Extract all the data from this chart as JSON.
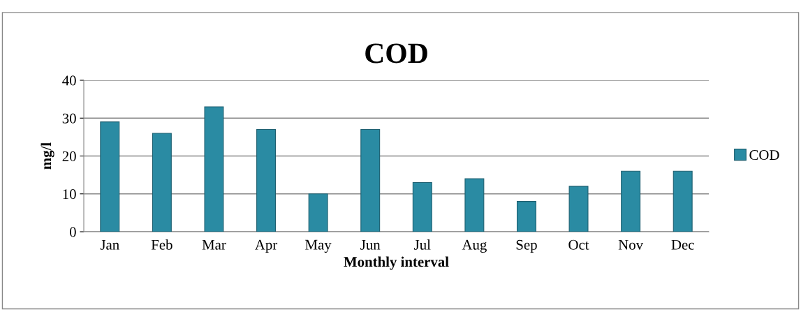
{
  "chart_data": {
    "type": "bar",
    "title": "COD",
    "xlabel": "Monthly interval",
    "ylabel": "mg/l",
    "categories": [
      "Jan",
      "Feb",
      "Mar",
      "Apr",
      "May",
      "Jun",
      "Jul",
      "Aug",
      "Sep",
      "Oct",
      "Nov",
      "Dec"
    ],
    "series": [
      {
        "name": "COD",
        "color": "#2a8ba3",
        "values": [
          29,
          26,
          33,
          27,
          10,
          27,
          13,
          14,
          8,
          12,
          16,
          16
        ]
      }
    ],
    "ylim": [
      0,
      40
    ],
    "yticks": [
      0,
      10,
      20,
      30,
      40
    ],
    "grid": "y",
    "legend": "right"
  }
}
